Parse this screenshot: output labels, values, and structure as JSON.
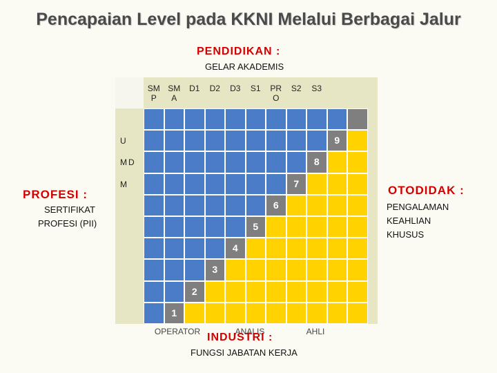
{
  "title": "Pencapaian Level pada KKNI Melalui Berbagai Jalur",
  "pendidikan": {
    "heading": "PENDIDIKAN :",
    "sub": "GELAR AKADEMIS"
  },
  "profesi": {
    "heading": "PROFESI :",
    "sub_line1": "SERTIFIKAT",
    "sub_line2": "PROFESI (PII)"
  },
  "otodidak": {
    "heading": "OTODIDAK :",
    "sub_line1": "PENGALAMAN",
    "sub_line2": "KEAHLIAN",
    "sub_line3": "KHUSUS"
  },
  "industri": {
    "heading": "INDUSTRI :",
    "sub": "FUNGSI JABATAN KERJA"
  },
  "columns": [
    {
      "line1": "SM",
      "line2": "P"
    },
    {
      "line1": "SM",
      "line2": "A"
    },
    {
      "line1": "D1",
      "line2": ""
    },
    {
      "line1": "D2",
      "line2": ""
    },
    {
      "line1": "D3",
      "line2": ""
    },
    {
      "line1": "S1",
      "line2": ""
    },
    {
      "line1": "PR",
      "line2": "O"
    },
    {
      "line1": "S2",
      "line2": ""
    },
    {
      "line1": "S3",
      "line2": ""
    }
  ],
  "rows": [
    "",
    "U",
    "MD",
    "M",
    "",
    "",
    "",
    "",
    "",
    ""
  ],
  "levels": [
    "1",
    "2",
    "3",
    "4",
    "5",
    "6",
    "7",
    "8",
    "9"
  ],
  "bottom": [
    "OPERATOR",
    "ANALIS",
    "AHLI"
  ],
  "colors": {
    "blue": "#4a7cc8",
    "yellow": "#ffd200",
    "gray": "#7f7f7f",
    "beige": "#e6e6c4"
  }
}
